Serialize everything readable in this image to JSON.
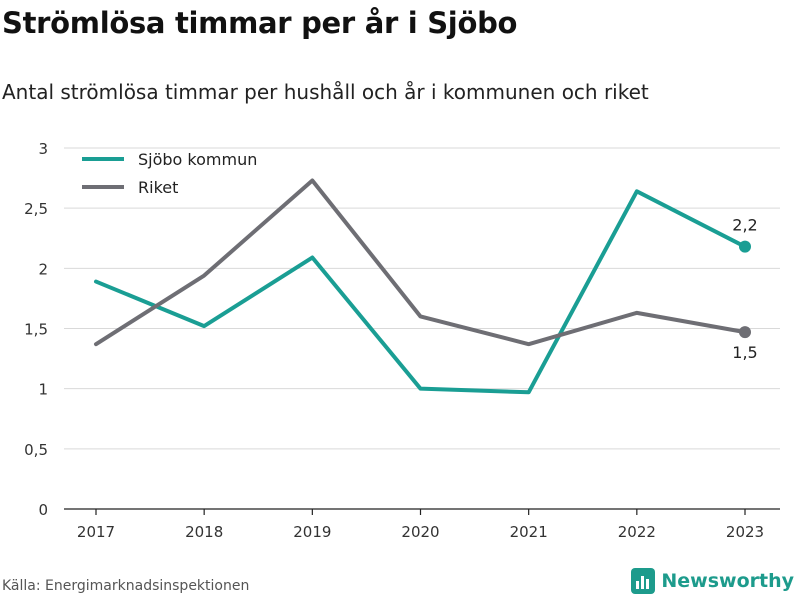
{
  "header": {
    "title": "Strömlösa timmar per år i Sjöbo",
    "subtitle": "Antal strömlösa timmar per hushåll och år i kommunen och riket"
  },
  "footer": {
    "source": "Källa: Energimarknadsinspektionen",
    "brand": "Newsworthy",
    "brand_icon": "bar-chart-logo-icon"
  },
  "colors": {
    "kommun": "#1a9e94",
    "riket": "#6e6e74",
    "grid": "#d9d9d9",
    "axis": "#222222"
  },
  "chart_data": {
    "type": "line",
    "categories": [
      "2017",
      "2018",
      "2019",
      "2020",
      "2021",
      "2022",
      "2023"
    ],
    "ylim": [
      0,
      3
    ],
    "yticks": [
      0,
      0.5,
      1,
      1.5,
      2,
      2.5,
      3
    ],
    "ytick_labels": [
      "0",
      "0,5",
      "1",
      "1,5",
      "2",
      "2,5",
      "3"
    ],
    "grid": true,
    "legend_position": "top-left",
    "series": [
      {
        "name": "Sjöbo kommun",
        "color": "#1a9e94",
        "values": [
          1.89,
          1.52,
          2.09,
          1.0,
          0.97,
          2.64,
          2.18
        ],
        "end_label": "2,2"
      },
      {
        "name": "Riket",
        "color": "#6e6e74",
        "values": [
          1.37,
          1.94,
          2.73,
          1.6,
          1.37,
          1.63,
          1.47
        ],
        "end_label": "1,5"
      }
    ]
  }
}
